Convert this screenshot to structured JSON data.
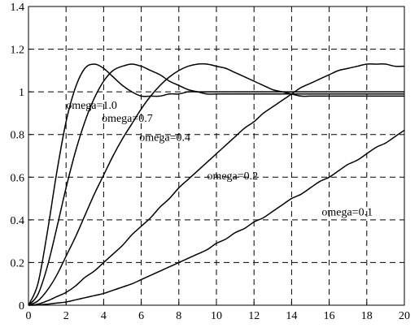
{
  "chart_data": {
    "type": "line",
    "title": "",
    "xlabel": "",
    "ylabel": "",
    "xlim": [
      0,
      20
    ],
    "ylim": [
      0,
      1.4
    ],
    "grid": true,
    "x_ticks": [
      "0",
      "2",
      "4",
      "6",
      "8",
      "10",
      "12",
      "14",
      "16",
      "18",
      "20"
    ],
    "y_ticks": [
      "0",
      "0.2",
      "0.4",
      "0.6",
      "0.8",
      "1",
      "1.2",
      "1.4"
    ],
    "x": [
      0,
      0.5,
      1,
      1.5,
      2,
      2.5,
      3,
      3.5,
      4,
      4.5,
      5,
      5.5,
      6,
      6.5,
      7,
      7.5,
      8,
      8.5,
      9,
      9.5,
      10,
      10.5,
      11,
      11.5,
      12,
      12.5,
      13,
      13.5,
      14,
      14.5,
      15,
      15.5,
      16,
      16.5,
      17,
      17.5,
      18,
      18.5,
      19,
      19.5,
      20
    ],
    "series": [
      {
        "name": "omega=1.0",
        "values": [
          0,
          0.1,
          0.34,
          0.62,
          0.86,
          1.02,
          1.11,
          1.13,
          1.11,
          1.07,
          1.03,
          1.0,
          0.98,
          0.98,
          0.98,
          0.99,
          0.99,
          1.0,
          1.0,
          1.0,
          1.0,
          1.0,
          1.0,
          1.0,
          1.0,
          1.0,
          1.0,
          1.0,
          1.0,
          1.0,
          1.0,
          1.0,
          1.0,
          1.0,
          1.0,
          1.0,
          1.0,
          1.0,
          1.0,
          1.0,
          1.0
        ]
      },
      {
        "name": "omega=0.7",
        "values": [
          0,
          0.05,
          0.18,
          0.36,
          0.55,
          0.72,
          0.86,
          0.97,
          1.05,
          1.1,
          1.12,
          1.13,
          1.12,
          1.1,
          1.08,
          1.05,
          1.03,
          1.01,
          1.0,
          0.99,
          0.99,
          0.99,
          0.99,
          0.99,
          0.99,
          0.99,
          0.99,
          0.99,
          0.99,
          0.99,
          0.99,
          0.99,
          0.99,
          0.99,
          0.99,
          0.99,
          0.99,
          0.99,
          0.99,
          0.99,
          0.99
        ]
      },
      {
        "name": "omega=0.4",
        "values": [
          0,
          0.02,
          0.07,
          0.14,
          0.23,
          0.32,
          0.42,
          0.52,
          0.61,
          0.7,
          0.78,
          0.85,
          0.92,
          0.98,
          1.03,
          1.07,
          1.1,
          1.12,
          1.13,
          1.13,
          1.12,
          1.11,
          1.09,
          1.07,
          1.05,
          1.03,
          1.01,
          1.0,
          0.99,
          0.98,
          0.98,
          0.98,
          0.98,
          0.98,
          0.98,
          0.98,
          0.98,
          0.98,
          0.98,
          0.98,
          0.98
        ]
      },
      {
        "name": "omega=0.2",
        "values": [
          0,
          0.005,
          0.02,
          0.04,
          0.06,
          0.09,
          0.13,
          0.16,
          0.2,
          0.24,
          0.28,
          0.33,
          0.37,
          0.41,
          0.46,
          0.5,
          0.55,
          0.59,
          0.63,
          0.67,
          0.71,
          0.75,
          0.79,
          0.83,
          0.86,
          0.9,
          0.93,
          0.96,
          0.99,
          1.02,
          1.04,
          1.06,
          1.08,
          1.1,
          1.11,
          1.12,
          1.13,
          1.13,
          1.13,
          1.12,
          1.12
        ]
      },
      {
        "name": "omega=0.1",
        "values": [
          0,
          0.001,
          0.005,
          0.01,
          0.015,
          0.025,
          0.035,
          0.045,
          0.055,
          0.07,
          0.085,
          0.1,
          0.12,
          0.14,
          0.16,
          0.18,
          0.2,
          0.22,
          0.24,
          0.26,
          0.29,
          0.31,
          0.34,
          0.36,
          0.39,
          0.41,
          0.44,
          0.47,
          0.5,
          0.52,
          0.55,
          0.58,
          0.6,
          0.63,
          0.66,
          0.68,
          0.71,
          0.74,
          0.76,
          0.79,
          0.82
        ]
      }
    ],
    "annotations": [
      {
        "text": "omega=1.0",
        "x": 2.0,
        "y": 0.92
      },
      {
        "text": "omega=0.7",
        "x": 3.9,
        "y": 0.86
      },
      {
        "text": "omega=0.4",
        "x": 5.9,
        "y": 0.77
      },
      {
        "text": "omega=0.2",
        "x": 9.5,
        "y": 0.59
      },
      {
        "text": "omega=0.1",
        "x": 15.6,
        "y": 0.42
      }
    ]
  }
}
